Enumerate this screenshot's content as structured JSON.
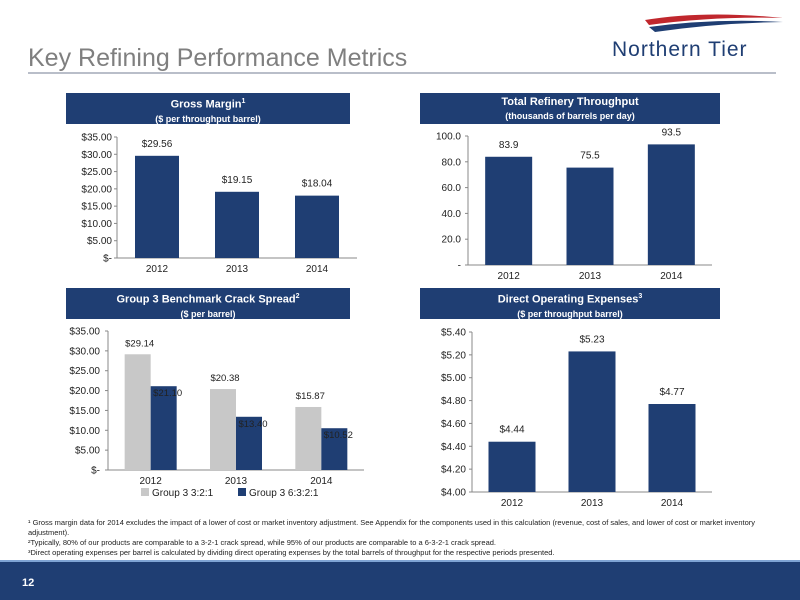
{
  "page": {
    "title": "Key Refining Performance Metrics",
    "logo_text": "Northern Tier",
    "page_number": "12"
  },
  "colors": {
    "navy": "#1f3e73",
    "gray_bar": "#c8c8c8",
    "title_gray": "#7f7f7f"
  },
  "panels": {
    "gross_margin": {
      "title": "Gross Margin",
      "sup": "1",
      "subtitle": "($ per throughput barrel)"
    },
    "throughput": {
      "title": "Total Refinery Throughput",
      "sup": "",
      "subtitle": "(thousands of barrels per day)"
    },
    "crack_spread": {
      "title": "Group 3 Benchmark Crack Spread",
      "sup": "2",
      "subtitle": "($ per barrel)"
    },
    "opex": {
      "title": "Direct Operating Expenses",
      "sup": "3",
      "subtitle": "($ per throughput barrel)"
    }
  },
  "chart_data": [
    {
      "id": "gross_margin",
      "type": "bar",
      "categories": [
        "2012",
        "2013",
        "2014"
      ],
      "values": [
        29.56,
        19.15,
        18.04
      ],
      "data_labels": [
        "$29.56",
        "$19.15",
        "$18.04"
      ],
      "ylim": [
        0,
        35
      ],
      "yticks": [
        0,
        5,
        10,
        15,
        20,
        25,
        30,
        35
      ],
      "ytick_labels": [
        "$-",
        "$5.00",
        "$10.00",
        "$15.00",
        "$20.00",
        "$25.00",
        "$30.00",
        "$35.00"
      ],
      "grid": false
    },
    {
      "id": "throughput",
      "type": "bar",
      "categories": [
        "2012",
        "2013",
        "2014"
      ],
      "values": [
        83.9,
        75.5,
        93.5
      ],
      "data_labels": [
        "83.9",
        "75.5",
        "93.5"
      ],
      "ylim": [
        0,
        100
      ],
      "yticks": [
        0,
        20,
        40,
        60,
        80,
        100
      ],
      "ytick_labels": [
        "-",
        "20.0",
        "40.0",
        "60.0",
        "80.0",
        "100.0"
      ],
      "grid": false
    },
    {
      "id": "crack_spread",
      "type": "bar",
      "categories": [
        "2012",
        "2013",
        "2014"
      ],
      "series": [
        {
          "name": "Group 3 3:2:1",
          "values": [
            29.14,
            20.38,
            15.87
          ],
          "data_labels": [
            "$29.14",
            "$20.38",
            "$15.87"
          ],
          "color": "#c8c8c8"
        },
        {
          "name": "Group 3 6:3:2:1",
          "values": [
            21.1,
            13.4,
            10.52
          ],
          "data_labels": [
            "$21.10",
            "$13.40",
            "$10.52"
          ],
          "color": "#1f3e73"
        }
      ],
      "ylim": [
        0,
        35
      ],
      "yticks": [
        0,
        5,
        10,
        15,
        20,
        25,
        30,
        35
      ],
      "ytick_labels": [
        "$-",
        "$5.00",
        "$10.00",
        "$15.00",
        "$20.00",
        "$25.00",
        "$30.00",
        "$35.00"
      ],
      "legend": "bottom",
      "grid": false
    },
    {
      "id": "opex",
      "type": "bar",
      "categories": [
        "2012",
        "2013",
        "2014"
      ],
      "values": [
        4.44,
        5.23,
        4.77
      ],
      "data_labels": [
        "$4.44",
        "$5.23",
        "$4.77"
      ],
      "ylim": [
        4.0,
        5.4
      ],
      "yticks": [
        4.0,
        4.2,
        4.4,
        4.6,
        4.8,
        5.0,
        5.2,
        5.4
      ],
      "ytick_labels": [
        "$4.00",
        "$4.20",
        "$4.40",
        "$4.60",
        "$4.80",
        "$5.00",
        "$5.20",
        "$5.40"
      ],
      "grid": false
    }
  ],
  "footnotes": [
    "¹ Gross margin data for 2014 excludes the impact of a lower of cost or market inventory adjustment.  See Appendix for the components used in this calculation (revenue, cost of sales, and lower of cost or market inventory adjustment).",
    "²Typically, 80% of our products are comparable to a 3-2-1 crack spread, while 95% of our products are comparable to a 6-3-2-1 crack spread.",
    "³Direct operating expenses per barrel is calculated by dividing direct operating expenses by the total barrels of throughput for the respective periods presented."
  ]
}
